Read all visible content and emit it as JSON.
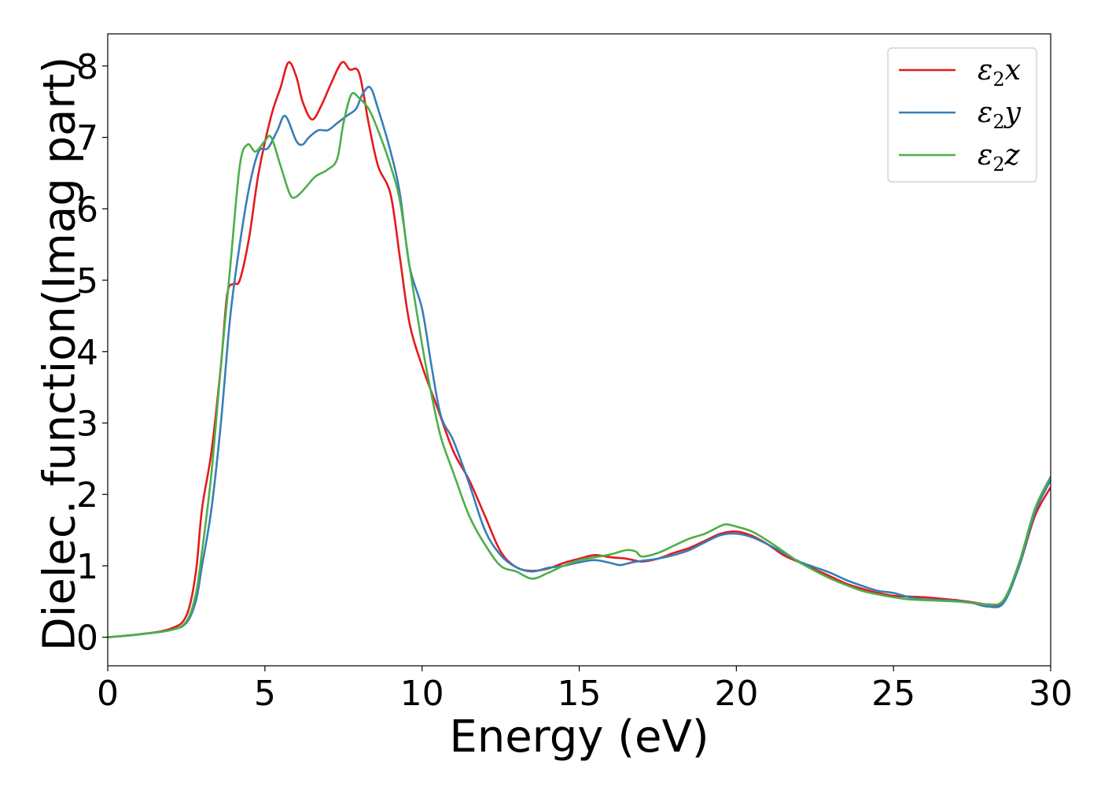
{
  "chart_data": {
    "type": "line",
    "title": "",
    "xlabel": "Energy (eV)",
    "ylabel": "Dielec. function(Imag part)",
    "xlim": [
      0,
      30
    ],
    "ylim": [
      -0.4,
      8.45
    ],
    "xticks": [
      0,
      5,
      10,
      15,
      20,
      25,
      30
    ],
    "xtick_labels": [
      "0",
      "5",
      "10",
      "15",
      "20",
      "25",
      "30"
    ],
    "yticks": [
      0,
      1,
      2,
      3,
      4,
      5,
      6,
      7,
      8
    ],
    "ytick_labels": [
      "0",
      "1",
      "2",
      "3",
      "4",
      "5",
      "6",
      "7",
      "8"
    ],
    "grid": false,
    "legend_position": "top-right",
    "series": [
      {
        "name": "ε2x",
        "legend_symbol": "ε",
        "legend_subscript": "2",
        "legend_var": "x",
        "color": "#e41a1c",
        "points": [
          [
            0,
            0
          ],
          [
            1,
            0.04
          ],
          [
            2,
            0.12
          ],
          [
            2.5,
            0.3
          ],
          [
            2.8,
            0.9
          ],
          [
            3.0,
            1.8
          ],
          [
            3.3,
            2.6
          ],
          [
            3.6,
            3.8
          ],
          [
            3.8,
            4.8
          ],
          [
            4.0,
            4.95
          ],
          [
            4.2,
            5.0
          ],
          [
            4.5,
            5.6
          ],
          [
            4.8,
            6.5
          ],
          [
            5.2,
            7.3
          ],
          [
            5.5,
            7.7
          ],
          [
            5.75,
            8.05
          ],
          [
            6.0,
            7.85
          ],
          [
            6.2,
            7.5
          ],
          [
            6.5,
            7.25
          ],
          [
            6.8,
            7.45
          ],
          [
            7.1,
            7.75
          ],
          [
            7.45,
            8.05
          ],
          [
            7.7,
            7.95
          ],
          [
            8.0,
            7.9
          ],
          [
            8.3,
            7.2
          ],
          [
            8.6,
            6.6
          ],
          [
            9.0,
            6.2
          ],
          [
            9.3,
            5.3
          ],
          [
            9.6,
            4.4
          ],
          [
            10.0,
            3.8
          ],
          [
            10.5,
            3.2
          ],
          [
            11.0,
            2.6
          ],
          [
            11.5,
            2.2
          ],
          [
            12.0,
            1.7
          ],
          [
            12.5,
            1.2
          ],
          [
            13.0,
            0.98
          ],
          [
            13.5,
            0.93
          ],
          [
            14.0,
            0.96
          ],
          [
            14.5,
            1.04
          ],
          [
            15.0,
            1.1
          ],
          [
            15.5,
            1.15
          ],
          [
            16.0,
            1.12
          ],
          [
            16.5,
            1.1
          ],
          [
            17.0,
            1.06
          ],
          [
            17.5,
            1.1
          ],
          [
            18.0,
            1.18
          ],
          [
            18.5,
            1.25
          ],
          [
            19.0,
            1.35
          ],
          [
            19.5,
            1.45
          ],
          [
            20.0,
            1.48
          ],
          [
            20.5,
            1.42
          ],
          [
            21.0,
            1.3
          ],
          [
            21.5,
            1.15
          ],
          [
            22.0,
            1.05
          ],
          [
            22.5,
            0.95
          ],
          [
            23.0,
            0.85
          ],
          [
            23.5,
            0.75
          ],
          [
            24.0,
            0.68
          ],
          [
            24.5,
            0.62
          ],
          [
            25.0,
            0.58
          ],
          [
            25.5,
            0.57
          ],
          [
            26.0,
            0.56
          ],
          [
            26.5,
            0.54
          ],
          [
            27.0,
            0.52
          ],
          [
            27.5,
            0.49
          ],
          [
            28.0,
            0.46
          ],
          [
            28.5,
            0.5
          ],
          [
            29.0,
            1.0
          ],
          [
            29.5,
            1.7
          ],
          [
            30.0,
            2.1
          ]
        ]
      },
      {
        "name": "ε2y",
        "legend_symbol": "ε",
        "legend_subscript": "2",
        "legend_var": "y",
        "color": "#377eb8",
        "points": [
          [
            0,
            0
          ],
          [
            1,
            0.04
          ],
          [
            2,
            0.1
          ],
          [
            2.5,
            0.2
          ],
          [
            2.8,
            0.5
          ],
          [
            3.0,
            1.0
          ],
          [
            3.3,
            1.8
          ],
          [
            3.6,
            3.0
          ],
          [
            3.9,
            4.5
          ],
          [
            4.2,
            5.5
          ],
          [
            4.5,
            6.3
          ],
          [
            4.8,
            6.8
          ],
          [
            5.1,
            6.85
          ],
          [
            5.4,
            7.1
          ],
          [
            5.65,
            7.3
          ],
          [
            6.0,
            6.95
          ],
          [
            6.2,
            6.9
          ],
          [
            6.4,
            7.0
          ],
          [
            6.7,
            7.1
          ],
          [
            7.0,
            7.1
          ],
          [
            7.3,
            7.2
          ],
          [
            7.6,
            7.3
          ],
          [
            7.9,
            7.4
          ],
          [
            8.1,
            7.6
          ],
          [
            8.35,
            7.7
          ],
          [
            8.6,
            7.4
          ],
          [
            9.0,
            6.8
          ],
          [
            9.3,
            6.2
          ],
          [
            9.6,
            5.2
          ],
          [
            10.0,
            4.6
          ],
          [
            10.3,
            3.8
          ],
          [
            10.6,
            3.1
          ],
          [
            11.0,
            2.75
          ],
          [
            11.5,
            2.15
          ],
          [
            12.0,
            1.5
          ],
          [
            12.5,
            1.15
          ],
          [
            13.0,
            0.98
          ],
          [
            13.5,
            0.92
          ],
          [
            14.0,
            0.97
          ],
          [
            14.5,
            1.0
          ],
          [
            15.0,
            1.05
          ],
          [
            15.5,
            1.08
          ],
          [
            16.0,
            1.04
          ],
          [
            16.3,
            1.01
          ],
          [
            16.7,
            1.05
          ],
          [
            17.0,
            1.07
          ],
          [
            17.5,
            1.1
          ],
          [
            18.0,
            1.15
          ],
          [
            18.5,
            1.22
          ],
          [
            19.0,
            1.33
          ],
          [
            19.5,
            1.43
          ],
          [
            20.0,
            1.45
          ],
          [
            20.5,
            1.4
          ],
          [
            21.0,
            1.3
          ],
          [
            21.5,
            1.18
          ],
          [
            22.0,
            1.06
          ],
          [
            22.5,
            0.98
          ],
          [
            23.0,
            0.9
          ],
          [
            23.5,
            0.8
          ],
          [
            24.0,
            0.72
          ],
          [
            24.5,
            0.65
          ],
          [
            25.0,
            0.62
          ],
          [
            25.5,
            0.56
          ],
          [
            26.0,
            0.53
          ],
          [
            26.5,
            0.52
          ],
          [
            27.0,
            0.51
          ],
          [
            27.5,
            0.48
          ],
          [
            28.0,
            0.43
          ],
          [
            28.5,
            0.48
          ],
          [
            29.0,
            1.0
          ],
          [
            29.5,
            1.75
          ],
          [
            30.0,
            2.2
          ]
        ]
      },
      {
        "name": "ε2z",
        "legend_symbol": "ε",
        "legend_subscript": "2",
        "legend_var": "z",
        "color": "#4daf4a",
        "points": [
          [
            0,
            0
          ],
          [
            1,
            0.04
          ],
          [
            2,
            0.1
          ],
          [
            2.5,
            0.22
          ],
          [
            2.8,
            0.6
          ],
          [
            3.0,
            1.2
          ],
          [
            3.3,
            2.3
          ],
          [
            3.6,
            3.8
          ],
          [
            3.9,
            5.2
          ],
          [
            4.2,
            6.6
          ],
          [
            4.45,
            6.9
          ],
          [
            4.7,
            6.8
          ],
          [
            5.0,
            6.95
          ],
          [
            5.2,
            7.0
          ],
          [
            5.5,
            6.6
          ],
          [
            5.8,
            6.2
          ],
          [
            6.0,
            6.17
          ],
          [
            6.3,
            6.3
          ],
          [
            6.6,
            6.45
          ],
          [
            7.0,
            6.55
          ],
          [
            7.3,
            6.7
          ],
          [
            7.5,
            7.2
          ],
          [
            7.75,
            7.6
          ],
          [
            8.0,
            7.55
          ],
          [
            8.3,
            7.4
          ],
          [
            8.6,
            7.1
          ],
          [
            9.0,
            6.6
          ],
          [
            9.3,
            6.1
          ],
          [
            9.6,
            5.2
          ],
          [
            10.0,
            4.1
          ],
          [
            10.3,
            3.4
          ],
          [
            10.6,
            2.8
          ],
          [
            11.0,
            2.3
          ],
          [
            11.5,
            1.7
          ],
          [
            12.0,
            1.3
          ],
          [
            12.5,
            1.0
          ],
          [
            13.0,
            0.92
          ],
          [
            13.5,
            0.82
          ],
          [
            14.0,
            0.9
          ],
          [
            14.5,
            1.0
          ],
          [
            15.0,
            1.08
          ],
          [
            15.5,
            1.12
          ],
          [
            16.0,
            1.16
          ],
          [
            16.5,
            1.22
          ],
          [
            16.8,
            1.2
          ],
          [
            17.0,
            1.13
          ],
          [
            17.5,
            1.18
          ],
          [
            18.0,
            1.28
          ],
          [
            18.5,
            1.38
          ],
          [
            19.0,
            1.45
          ],
          [
            19.5,
            1.56
          ],
          [
            19.7,
            1.58
          ],
          [
            20.0,
            1.55
          ],
          [
            20.5,
            1.48
          ],
          [
            21.0,
            1.35
          ],
          [
            21.5,
            1.2
          ],
          [
            22.0,
            1.05
          ],
          [
            22.5,
            0.93
          ],
          [
            23.0,
            0.82
          ],
          [
            23.5,
            0.73
          ],
          [
            24.0,
            0.65
          ],
          [
            24.5,
            0.6
          ],
          [
            25.0,
            0.56
          ],
          [
            25.5,
            0.53
          ],
          [
            26.0,
            0.52
          ],
          [
            26.5,
            0.51
          ],
          [
            27.0,
            0.5
          ],
          [
            27.5,
            0.48
          ],
          [
            28.0,
            0.46
          ],
          [
            28.5,
            0.52
          ],
          [
            29.0,
            1.05
          ],
          [
            29.5,
            1.8
          ],
          [
            30.0,
            2.25
          ]
        ]
      }
    ]
  }
}
